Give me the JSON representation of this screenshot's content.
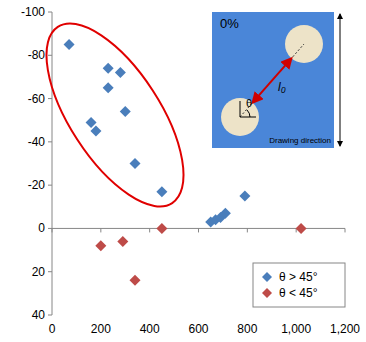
{
  "chart_data": {
    "type": "scatter",
    "xlim": [
      0,
      1200
    ],
    "xticks": [
      0,
      200,
      400,
      600,
      800,
      {
        "value": 1000,
        "label": "1,000"
      },
      {
        "value": 1200,
        "label": "1,200"
      }
    ],
    "ylim": [
      40,
      -100
    ],
    "yticks": [
      -100,
      -80,
      -60,
      -40,
      -20,
      0,
      20,
      40
    ],
    "grid": false,
    "legend": "lower right",
    "marker": "diamond",
    "series": [
      {
        "name": "θ > 45°",
        "color": "#4a7ebb",
        "x": [
          70,
          230,
          280,
          230,
          160,
          180,
          300,
          340,
          450,
          650,
          670,
          690,
          710,
          790
        ],
        "values": [
          -85,
          -74,
          -72,
          -65,
          -49,
          -45,
          -54,
          -30,
          -17,
          -3,
          -4,
          -5,
          -7,
          -15
        ]
      },
      {
        "name": "θ < 45°",
        "color": "#be4b48",
        "x": [
          200,
          290,
          450,
          340,
          1020
        ],
        "values": [
          8,
          6,
          0,
          24,
          0
        ]
      }
    ],
    "annotations": [
      "0%",
      "θ",
      "l₀",
      "Drawing direction"
    ]
  }
}
